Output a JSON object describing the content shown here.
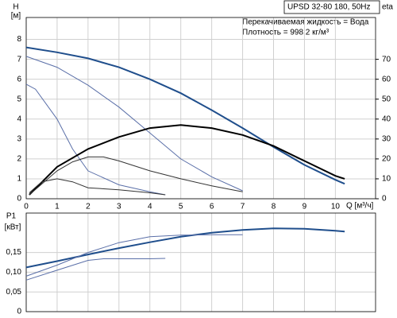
{
  "chart_data": [
    {
      "type": "line",
      "title": "UPSD 32-80 180, 50Hz",
      "annotations": [
        "Перекачиваемая жидкость = Вода",
        "Плотность = 998.2 кг/м³"
      ],
      "ylabel": "H",
      "yunit": "[м]",
      "y2label": "eta",
      "xlabel": "Q [м³/ч]",
      "xlim": [
        0,
        11.3
      ],
      "xticks": [
        0,
        1,
        2,
        3,
        4,
        5,
        6,
        7,
        8,
        9,
        10
      ],
      "ylim": [
        0,
        9.1
      ],
      "yticks": [
        0,
        1,
        2,
        3,
        4,
        5,
        6,
        7,
        8
      ],
      "y2lim": [
        0,
        91
      ],
      "y2ticks": [
        0,
        10,
        20,
        30,
        40,
        50,
        60,
        70
      ],
      "grid": true,
      "series": [
        {
          "color": "#1f4e8c",
          "width": 2,
          "x": [
            0,
            1,
            2,
            3,
            4,
            5,
            6,
            7,
            8,
            9,
            10,
            10.3
          ],
          "values": [
            7.6,
            7.35,
            7.05,
            6.6,
            6.0,
            5.3,
            4.45,
            3.55,
            2.6,
            1.7,
            0.95,
            0.75
          ]
        },
        {
          "color": "#5a6fa8",
          "width": 1,
          "x": [
            0,
            1,
            2,
            3,
            4,
            5,
            6,
            7
          ],
          "values": [
            7.15,
            6.6,
            5.7,
            4.6,
            3.3,
            2.0,
            1.1,
            0.4
          ]
        },
        {
          "color": "#5a6fa8",
          "width": 1,
          "x": [
            0,
            0.3,
            1,
            1.5,
            2,
            3,
            4,
            4.5
          ],
          "values": [
            5.75,
            5.5,
            4.0,
            2.5,
            1.4,
            0.7,
            0.35,
            0.2
          ]
        },
        {
          "color": "#000000",
          "width": 2,
          "axis": "y2",
          "x": [
            0.1,
            1,
            2,
            3,
            4,
            5,
            6,
            7,
            8,
            9,
            10,
            10.3
          ],
          "values": [
            2,
            16,
            25,
            31,
            35.5,
            37,
            35.5,
            32,
            26.5,
            19,
            11.5,
            10
          ]
        },
        {
          "color": "#333333",
          "width": 1,
          "axis": "y2",
          "x": [
            0.1,
            1,
            1.5,
            2,
            2.5,
            3,
            4,
            5,
            6,
            7
          ],
          "values": [
            2,
            14,
            18.5,
            21,
            21,
            19,
            14,
            10,
            6.5,
            3.5
          ]
        },
        {
          "color": "#333333",
          "width": 1,
          "axis": "y2",
          "x": [
            0.1,
            0.5,
            1,
            1.5,
            2,
            3,
            4,
            4.5
          ],
          "values": [
            3,
            8.5,
            10,
            8.5,
            5.5,
            4.5,
            3,
            2
          ]
        }
      ]
    },
    {
      "type": "line",
      "ylabel": "P1",
      "yunit": "[кВт]",
      "xlim": [
        0,
        11.3
      ],
      "xticks": [
        0,
        1,
        2,
        3,
        4,
        5,
        6,
        7,
        8,
        9,
        10
      ],
      "ylim": [
        0,
        0.25
      ],
      "yticks": [
        0,
        {
          "value": 0.05,
          "label": "0,05"
        },
        {
          "value": 0.1,
          "label": "0,10"
        },
        {
          "value": 0.15,
          "label": "0,15"
        }
      ],
      "grid": true,
      "series": [
        {
          "color": "#1f4e8c",
          "width": 2,
          "x": [
            0,
            1,
            2,
            3,
            4,
            5,
            6,
            7,
            8,
            9,
            10,
            10.3
          ],
          "values": [
            0.112,
            0.128,
            0.145,
            0.161,
            0.176,
            0.19,
            0.2,
            0.207,
            0.211,
            0.21,
            0.205,
            0.203
          ]
        },
        {
          "color": "#5a6fa8",
          "width": 1,
          "x": [
            0,
            1,
            2,
            3,
            4,
            5,
            6,
            7
          ],
          "values": [
            0.09,
            0.118,
            0.15,
            0.175,
            0.19,
            0.194,
            0.195,
            0.195
          ]
        },
        {
          "color": "#5a6fa8",
          "width": 1,
          "x": [
            0,
            1,
            2,
            2.5,
            3,
            4,
            4.5
          ],
          "values": [
            0.08,
            0.105,
            0.13,
            0.134,
            0.134,
            0.134,
            0.135
          ]
        }
      ]
    }
  ]
}
